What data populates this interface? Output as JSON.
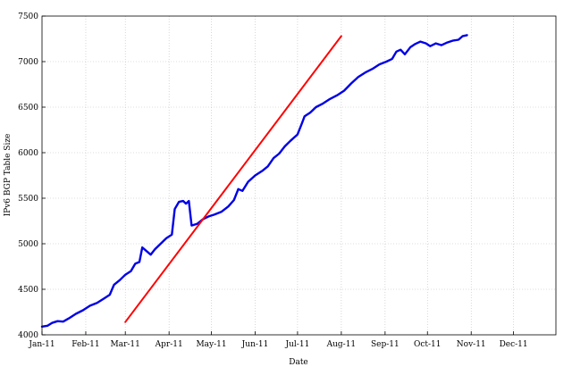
{
  "chart_data": {
    "type": "line",
    "title": "",
    "xlabel": "Date",
    "ylabel": "IPv6 BGP Table Size",
    "x_ticks": [
      "2011-01-01",
      "2011-02-01",
      "2011-03-01",
      "2011-04-01",
      "2011-05-01",
      "2011-06-01",
      "2011-07-01",
      "2011-08-01",
      "2011-09-01",
      "2011-10-01",
      "2011-11-01",
      "2011-12-01"
    ],
    "x_tick_labels": [
      "Jan-11",
      "Feb-11",
      "Mar-11",
      "Apr-11",
      "May-11",
      "Jun-11",
      "Jul-11",
      "Aug-11",
      "Sep-11",
      "Oct-11",
      "Nov-11",
      "Dec-11"
    ],
    "xlim": [
      "2011-01-01",
      "2011-12-31"
    ],
    "ylim": [
      4000,
      7500
    ],
    "y_ticks": [
      4000,
      4500,
      5000,
      5500,
      6000,
      6500,
      7000,
      7500
    ],
    "grid": true,
    "legend": null,
    "series": [
      {
        "color": "#0000e6",
        "points": [
          [
            "2011-01-01",
            4090
          ],
          [
            "2011-01-05",
            4100
          ],
          [
            "2011-01-08",
            4130
          ],
          [
            "2011-01-12",
            4150
          ],
          [
            "2011-01-16",
            4145
          ],
          [
            "2011-01-20",
            4180
          ],
          [
            "2011-01-25",
            4230
          ],
          [
            "2011-01-30",
            4270
          ],
          [
            "2011-02-04",
            4320
          ],
          [
            "2011-02-09",
            4350
          ],
          [
            "2011-02-14",
            4400
          ],
          [
            "2011-02-18",
            4440
          ],
          [
            "2011-02-21",
            4550
          ],
          [
            "2011-02-25",
            4600
          ],
          [
            "2011-03-01",
            4660
          ],
          [
            "2011-03-05",
            4700
          ],
          [
            "2011-03-08",
            4780
          ],
          [
            "2011-03-11",
            4800
          ],
          [
            "2011-03-13",
            4960
          ],
          [
            "2011-03-16",
            4920
          ],
          [
            "2011-03-19",
            4880
          ],
          [
            "2011-03-22",
            4940
          ],
          [
            "2011-03-26",
            5000
          ],
          [
            "2011-03-30",
            5060
          ],
          [
            "2011-04-03",
            5100
          ],
          [
            "2011-04-05",
            5380
          ],
          [
            "2011-04-08",
            5460
          ],
          [
            "2011-04-11",
            5470
          ],
          [
            "2011-04-13",
            5440
          ],
          [
            "2011-04-15",
            5470
          ],
          [
            "2011-04-17",
            5200
          ],
          [
            "2011-04-21",
            5220
          ],
          [
            "2011-04-25",
            5270
          ],
          [
            "2011-04-29",
            5300
          ],
          [
            "2011-05-03",
            5320
          ],
          [
            "2011-05-08",
            5350
          ],
          [
            "2011-05-13",
            5410
          ],
          [
            "2011-05-17",
            5480
          ],
          [
            "2011-05-20",
            5600
          ],
          [
            "2011-05-23",
            5580
          ],
          [
            "2011-05-27",
            5680
          ],
          [
            "2011-06-01",
            5750
          ],
          [
            "2011-06-06",
            5800
          ],
          [
            "2011-06-10",
            5850
          ],
          [
            "2011-06-14",
            5940
          ],
          [
            "2011-06-18",
            5990
          ],
          [
            "2011-06-22",
            6070
          ],
          [
            "2011-06-26",
            6130
          ],
          [
            "2011-07-01",
            6200
          ],
          [
            "2011-07-04",
            6320
          ],
          [
            "2011-07-06",
            6400
          ],
          [
            "2011-07-10",
            6440
          ],
          [
            "2011-07-14",
            6500
          ],
          [
            "2011-07-19",
            6540
          ],
          [
            "2011-07-24",
            6590
          ],
          [
            "2011-07-29",
            6630
          ],
          [
            "2011-08-03",
            6680
          ],
          [
            "2011-08-08",
            6760
          ],
          [
            "2011-08-13",
            6830
          ],
          [
            "2011-08-18",
            6880
          ],
          [
            "2011-08-23",
            6920
          ],
          [
            "2011-08-28",
            6970
          ],
          [
            "2011-09-02",
            7000
          ],
          [
            "2011-09-06",
            7030
          ],
          [
            "2011-09-09",
            7110
          ],
          [
            "2011-09-12",
            7130
          ],
          [
            "2011-09-15",
            7080
          ],
          [
            "2011-09-19",
            7160
          ],
          [
            "2011-09-22",
            7190
          ],
          [
            "2011-09-26",
            7220
          ],
          [
            "2011-09-30",
            7200
          ],
          [
            "2011-10-03",
            7170
          ],
          [
            "2011-10-07",
            7200
          ],
          [
            "2011-10-11",
            7180
          ],
          [
            "2011-10-15",
            7210
          ],
          [
            "2011-10-19",
            7230
          ],
          [
            "2011-10-23",
            7240
          ],
          [
            "2011-10-26",
            7280
          ],
          [
            "2011-10-29",
            7290
          ]
        ]
      },
      {
        "color": "#ff0000",
        "points": [
          [
            "2011-03-01",
            4140
          ],
          [
            "2011-08-01",
            7280
          ]
        ]
      }
    ]
  }
}
